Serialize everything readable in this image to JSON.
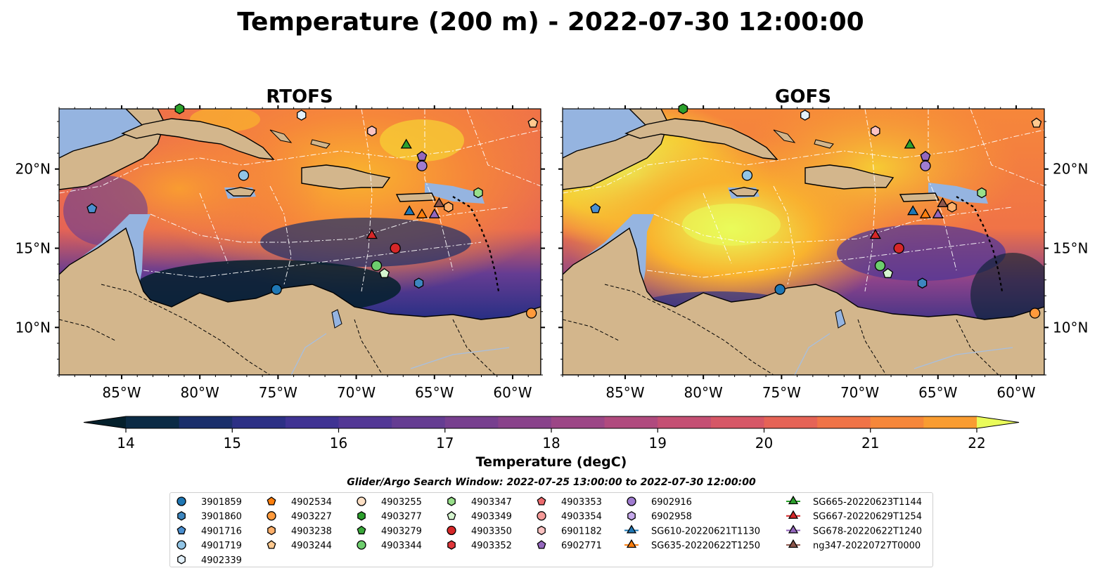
{
  "figure": {
    "title": "Temperature (200 m) - 2022-07-30 12:00:00",
    "panels": [
      {
        "title": "RTOFS"
      },
      {
        "title": "GOFS"
      }
    ],
    "lat_ticks": [
      {
        "value": 20,
        "label": "20°N"
      },
      {
        "value": 15,
        "label": "15°N"
      },
      {
        "value": 10,
        "label": "10°N"
      }
    ],
    "lon_ticks": [
      {
        "value": -85,
        "label": "85°W"
      },
      {
        "value": -80,
        "label": "80°W"
      },
      {
        "value": -75,
        "label": "75°W"
      },
      {
        "value": -70,
        "label": "70°W"
      },
      {
        "value": -65,
        "label": "65°W"
      },
      {
        "value": -60,
        "label": "60°W"
      }
    ],
    "extent": {
      "lon": [
        -89,
        -58.2
      ],
      "lat": [
        7,
        23.8
      ]
    },
    "colorbar": {
      "label": "Temperature (degC)",
      "min": 14,
      "max": 22,
      "step": 0.5,
      "extend": "both",
      "ticks": [
        "14",
        "15",
        "16",
        "17",
        "18",
        "19",
        "20",
        "21",
        "22"
      ],
      "colormap": "thermal",
      "colors": [
        "#04202c",
        "#0b2b45",
        "#1a2f6b",
        "#2c3085",
        "#3f3393",
        "#523795",
        "#653c92",
        "#773f8f",
        "#89428b",
        "#9c4686",
        "#b04a7e",
        "#c44f73",
        "#d65766",
        "#e56356",
        "#f07347",
        "#f6873a",
        "#f99c31",
        "#f9b32e",
        "#f6cb34",
        "#f0e342",
        "#e9fb5a"
      ]
    },
    "legend": {
      "title": "Glider/Argo Search Window: 2022-07-25 13:00:00 to 2022-07-30 12:00:00",
      "columns": [
        [
          {
            "label": "3901859",
            "marker": "circle",
            "color": "#1f77b4"
          },
          {
            "label": "3901860",
            "marker": "hexagon",
            "color": "#3d86bf"
          },
          {
            "label": "4901716",
            "marker": "pentagon",
            "color": "#4b8fd0"
          },
          {
            "label": "4901719",
            "marker": "circle",
            "color": "#92c5e6"
          },
          {
            "label": "4902339",
            "marker": "hexagon",
            "color": "#e3f1fb"
          }
        ],
        [
          {
            "label": "4902534",
            "marker": "pentagon",
            "color": "#ff7f0e"
          },
          {
            "label": "4903227",
            "marker": "circle",
            "color": "#ff9a3c"
          },
          {
            "label": "4903238",
            "marker": "hexagon",
            "color": "#ffb06b"
          },
          {
            "label": "4903244",
            "marker": "pentagon",
            "color": "#ffc98f"
          }
        ],
        [
          {
            "label": "4903255",
            "marker": "circle",
            "color": "#fde0c5"
          },
          {
            "label": "4903277",
            "marker": "hexagon",
            "color": "#2ca02c"
          },
          {
            "label": "4903279",
            "marker": "pentagon",
            "color": "#3aa83a"
          },
          {
            "label": "4903344",
            "marker": "circle",
            "color": "#6dce6d"
          }
        ],
        [
          {
            "label": "4903347",
            "marker": "hexagon",
            "color": "#98df8a"
          },
          {
            "label": "4903349",
            "marker": "pentagon",
            "color": "#d5f5cf"
          },
          {
            "label": "4903350",
            "marker": "circle",
            "color": "#d62728"
          },
          {
            "label": "4903352",
            "marker": "hexagon",
            "color": "#e0373b"
          }
        ],
        [
          {
            "label": "4903353",
            "marker": "pentagon",
            "color": "#ec6b6e"
          },
          {
            "label": "4903354",
            "marker": "circle",
            "color": "#f59a98"
          },
          {
            "label": "6901182",
            "marker": "hexagon",
            "color": "#fbc3c2"
          },
          {
            "label": "6902771",
            "marker": "pentagon",
            "color": "#9467bd"
          }
        ],
        [
          {
            "label": "6902916",
            "marker": "circle",
            "color": "#a07cd0"
          },
          {
            "label": "6902958",
            "marker": "hexagon",
            "color": "#c5a8ea"
          },
          {
            "label": "SG610-20220621T1130",
            "marker": "triangle",
            "color": "#1f77b4",
            "line": true
          },
          {
            "label": "SG635-20220622T1250",
            "marker": "triangle",
            "color": "#ff7f0e",
            "line": true
          }
        ],
        [
          {
            "label": "SG665-20220623T1144",
            "marker": "triangle",
            "color": "#2ca02c",
            "line": true
          },
          {
            "label": "SG667-20220629T1254",
            "marker": "triangle",
            "color": "#d62728",
            "line": true
          },
          {
            "label": "SG678-20220622T1240",
            "marker": "triangle",
            "color": "#9467bd",
            "line": true
          },
          {
            "label": "ng347-20220727T0000",
            "marker": "triangle",
            "color": "#8c564b",
            "line": true
          }
        ]
      ]
    },
    "observations": [
      {
        "id": "4903277",
        "lon": -81.3,
        "lat": 23.8,
        "marker": "hexagon",
        "color": "#2ca02c"
      },
      {
        "id": "4902339",
        "lon": -73.5,
        "lat": 23.4,
        "marker": "hexagon",
        "color": "#e3f1fb"
      },
      {
        "id": "6901182",
        "lon": -69.0,
        "lat": 22.4,
        "marker": "hexagon",
        "color": "#fbc3c2"
      },
      {
        "id": "4903244",
        "lon": -58.7,
        "lat": 22.9,
        "marker": "pentagon",
        "color": "#ffc98f"
      },
      {
        "id": "SG665-20220623T1144",
        "lon": -66.8,
        "lat": 21.5,
        "marker": "triangle",
        "color": "#2ca02c"
      },
      {
        "id": "6902771",
        "lon": -65.8,
        "lat": 20.8,
        "marker": "pentagon",
        "color": "#9467bd"
      },
      {
        "id": "6902916",
        "lon": -65.8,
        "lat": 20.2,
        "marker": "circle",
        "color": "#a07cd0"
      },
      {
        "id": "4901719",
        "lon": -77.2,
        "lat": 19.6,
        "marker": "circle",
        "color": "#92c5e6"
      },
      {
        "id": "4903347",
        "lon": -62.2,
        "lat": 18.5,
        "marker": "hexagon",
        "color": "#98df8a"
      },
      {
        "id": "4901716",
        "lon": -86.9,
        "lat": 17.5,
        "marker": "pentagon",
        "color": "#4b8fd0"
      },
      {
        "id": "SG610-20220621T1130",
        "lon": -66.6,
        "lat": 17.3,
        "marker": "triangle",
        "color": "#1f77b4"
      },
      {
        "id": "ng347-20220727T0000",
        "lon": -64.7,
        "lat": 17.8,
        "marker": "triangle",
        "color": "#8c564b"
      },
      {
        "id": "4903238",
        "lon": -64.1,
        "lat": 17.6,
        "marker": "hexagon",
        "color": "#ffb06b"
      },
      {
        "id": "SG635-20220622T1250",
        "lon": -65.8,
        "lat": 17.1,
        "marker": "triangle",
        "color": "#ff7f0e"
      },
      {
        "id": "SG678-20220622T1240",
        "lon": -65.0,
        "lat": 17.1,
        "marker": "triangle",
        "color": "#9467bd"
      },
      {
        "id": "SG667-20220629T1254",
        "lon": -69.0,
        "lat": 15.8,
        "marker": "triangle",
        "color": "#d62728"
      },
      {
        "id": "4903350",
        "lon": -67.5,
        "lat": 15.0,
        "marker": "circle",
        "color": "#d62728"
      },
      {
        "id": "4903344",
        "lon": -68.7,
        "lat": 13.9,
        "marker": "circle",
        "color": "#6dce6d"
      },
      {
        "id": "4903349",
        "lon": -68.2,
        "lat": 13.4,
        "marker": "pentagon",
        "color": "#d5f5cf"
      },
      {
        "id": "3901860",
        "lon": -66.0,
        "lat": 12.8,
        "marker": "hexagon",
        "color": "#3d86bf"
      },
      {
        "id": "3901859",
        "lon": -75.1,
        "lat": 12.4,
        "marker": "circle",
        "color": "#1f77b4"
      },
      {
        "id": "4903227",
        "lon": -58.8,
        "lat": 10.9,
        "marker": "circle",
        "color": "#ff9a3c"
      }
    ]
  }
}
